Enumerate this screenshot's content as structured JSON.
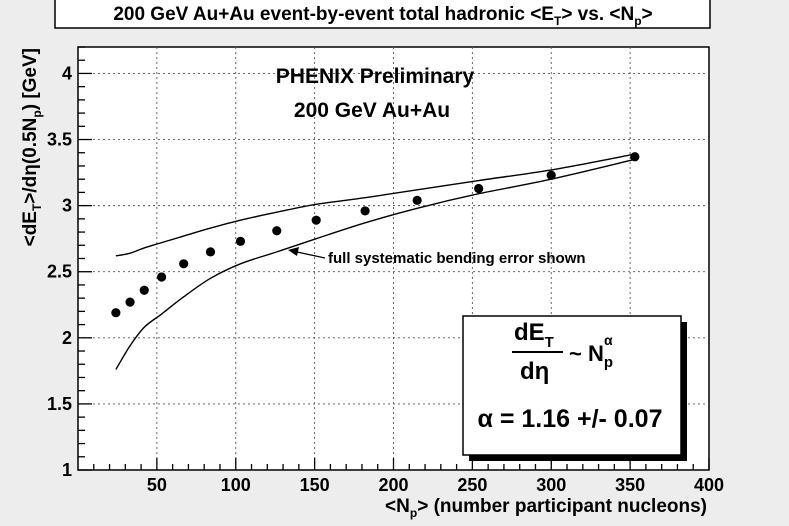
{
  "chart_data": {
    "type": "scatter",
    "title": "200 GeV Au+Au event-by-event total hadronic <ET> vs. <Np>",
    "title_parts": {
      "a": "200 GeV Au+Au event-by-event total hadronic <E",
      "b": "T",
      "c": "> vs. <N",
      "d": "p",
      "e": ">"
    },
    "xlabel": "<Np> (number participant nucleons)",
    "xlabel_parts": {
      "a": "<N",
      "b": "p",
      "c": "> (number participant nucleons)"
    },
    "ylabel": "<dET>/dη(0.5Np) [GeV]",
    "ylabel_parts": {
      "a": "<dE",
      "b": "T",
      "c": ">/dη(0.5N",
      "d": "p",
      "e": ") [GeV]"
    },
    "xlim": [
      0,
      400
    ],
    "ylim": [
      1,
      4.2
    ],
    "grid": true,
    "x_ticks": [
      50,
      100,
      150,
      200,
      250,
      300,
      350,
      400
    ],
    "y_ticks": [
      1,
      1.5,
      2,
      2.5,
      3,
      3.5,
      4
    ],
    "points": {
      "x": [
        24,
        33,
        42,
        53,
        67,
        84,
        103,
        126,
        151,
        182,
        215,
        254,
        300,
        353
      ],
      "y": [
        2.19,
        2.27,
        2.36,
        2.46,
        2.56,
        2.65,
        2.73,
        2.81,
        2.89,
        2.96,
        3.04,
        3.13,
        3.23,
        3.37
      ]
    },
    "systematic_band": {
      "upper": {
        "x": [
          24,
          33,
          42,
          53,
          67,
          84,
          103,
          126,
          151,
          182,
          215,
          254,
          300,
          353
        ],
        "y": [
          2.62,
          2.64,
          2.68,
          2.72,
          2.77,
          2.83,
          2.89,
          2.95,
          3.01,
          3.06,
          3.12,
          3.19,
          3.27,
          3.39
        ]
      },
      "lower": {
        "x": [
          24,
          33,
          42,
          53,
          67,
          84,
          103,
          126,
          151,
          182,
          215,
          254,
          300,
          353
        ],
        "y": [
          1.76,
          1.94,
          2.08,
          2.18,
          2.31,
          2.45,
          2.56,
          2.65,
          2.75,
          2.87,
          2.98,
          3.09,
          3.2,
          3.35
        ]
      }
    },
    "annotations": {
      "phenix": "PHENIX  Preliminary",
      "system": "200 GeV Au+Au",
      "arrow_text": "full systematic bending error shown",
      "formula": {
        "numerator": "dE",
        "numerator_sub": "T",
        "denominator": "dη",
        "tilde": "~ N",
        "sub": "p",
        "sup": "α"
      },
      "alpha_result": "α = 1.16 +/- 0.07"
    }
  }
}
